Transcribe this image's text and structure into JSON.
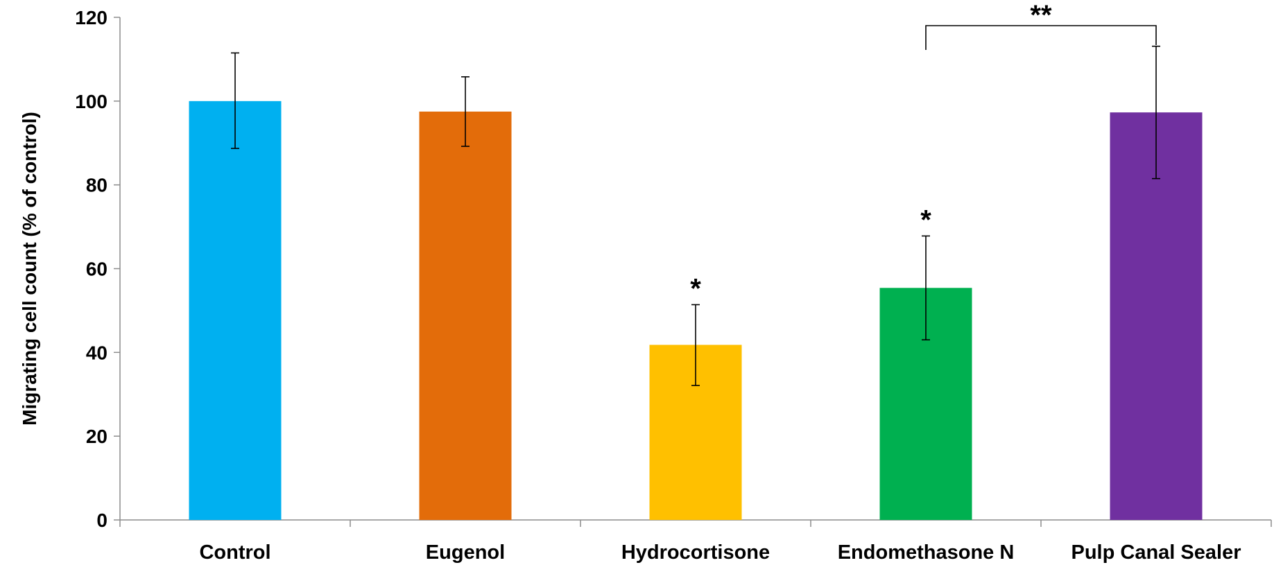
{
  "chart_data": {
    "type": "bar",
    "categories": [
      "Control",
      "Eugenol",
      "Hydrocortisone",
      "Endomethasone N",
      "Pulp Canal Sealer"
    ],
    "values": [
      100,
      97.5,
      41.8,
      55.4,
      97.3
    ],
    "error_plus": [
      11.5,
      8.3,
      9.6,
      12.4,
      15.8
    ],
    "error_minus": [
      11.3,
      8.3,
      9.7,
      12.4,
      15.8
    ],
    "colors": [
      "#00b0f0",
      "#e36c0a",
      "#ffc000",
      "#00b050",
      "#7030a0"
    ],
    "ylabel": "Migrating  cell count (% of control)",
    "xlabel": "",
    "title": "",
    "ylim": [
      0,
      120
    ],
    "yticks": [
      0,
      20,
      40,
      60,
      80,
      100,
      120
    ],
    "annotations": [
      {
        "category": "Hydrocortisone",
        "text": "*"
      },
      {
        "category": "Endomethasone N",
        "text": "*"
      }
    ],
    "bracket": {
      "from": "Endomethasone N",
      "to": "Pulp Canal Sealer",
      "text": "**"
    },
    "grid": false,
    "legend": "none"
  }
}
